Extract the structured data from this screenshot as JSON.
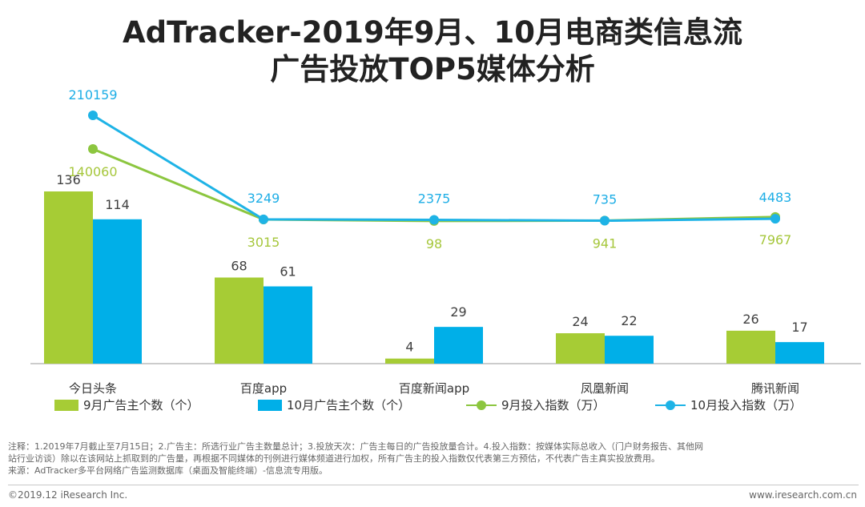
{
  "title_line1": "AdTracker-2019年9月、10月电商类信息流",
  "title_line2": "广告投放TOP5媒体分析",
  "colors": {
    "sep_bar": "#a6cc35",
    "oct_bar": "#00afe8",
    "sep_line": "#8cc63f",
    "oct_line": "#1eb3e6",
    "sep_label": "#a6c73c",
    "oct_label": "#1eaee6"
  },
  "chart_data": {
    "type": "bar",
    "categories": [
      "今日头条",
      "百度app",
      "百度新闻app",
      "凤凰新闻",
      "腾讯新闻"
    ],
    "series": [
      {
        "name": "9月广告主个数（个）",
        "kind": "bar",
        "values": [
          136,
          68,
          4,
          24,
          26
        ]
      },
      {
        "name": "10月广告主个数（个）",
        "kind": "bar",
        "values": [
          114,
          61,
          29,
          22,
          17
        ]
      },
      {
        "name": "9月投入指数（万）",
        "kind": "line",
        "values": [
          140060,
          3015,
          98,
          941,
          7967
        ]
      },
      {
        "name": "10月投入指数（万）",
        "kind": "line",
        "values": [
          210159,
          3249,
          2375,
          735,
          4483
        ]
      }
    ],
    "bar_ylim": [
      0,
      140
    ],
    "line_ylim": [
      0,
      240000
    ],
    "legend_position": "bottom"
  },
  "legend": [
    {
      "label": "9月广告主个数（个）",
      "kind": "bar",
      "color": "#a6cc35"
    },
    {
      "label": "10月广告主个数（个）",
      "kind": "bar",
      "color": "#00afe8"
    },
    {
      "label": "9月投入指数（万）",
      "kind": "line",
      "color": "#8cc63f"
    },
    {
      "label": "10月投入指数（万）",
      "kind": "line",
      "color": "#1eb3e6"
    }
  ],
  "notes": {
    "line1": "注释：1.2019年7月截止至7月15日；2.广告主：所选行业广告主数量总计；3.投放天次：广告主每日的广告投放量合计。4.投入指数：按媒体实际总收入（门户财务报告、其他网",
    "line2": "站行业访谈）除以在该网站上抓取到的广告量，再根据不同媒体的刊例进行媒体频道进行加权，所有广告主的投入指数仅代表第三方预估，不代表广告主真实投放费用。",
    "line3": "来源：AdTracker多平台网络广告监测数据库（桌面及智能终端）-信息流专用版。"
  },
  "footer": {
    "copyright": "©2019.12 iResearch Inc.",
    "website": "www.iresearch.com.cn"
  }
}
